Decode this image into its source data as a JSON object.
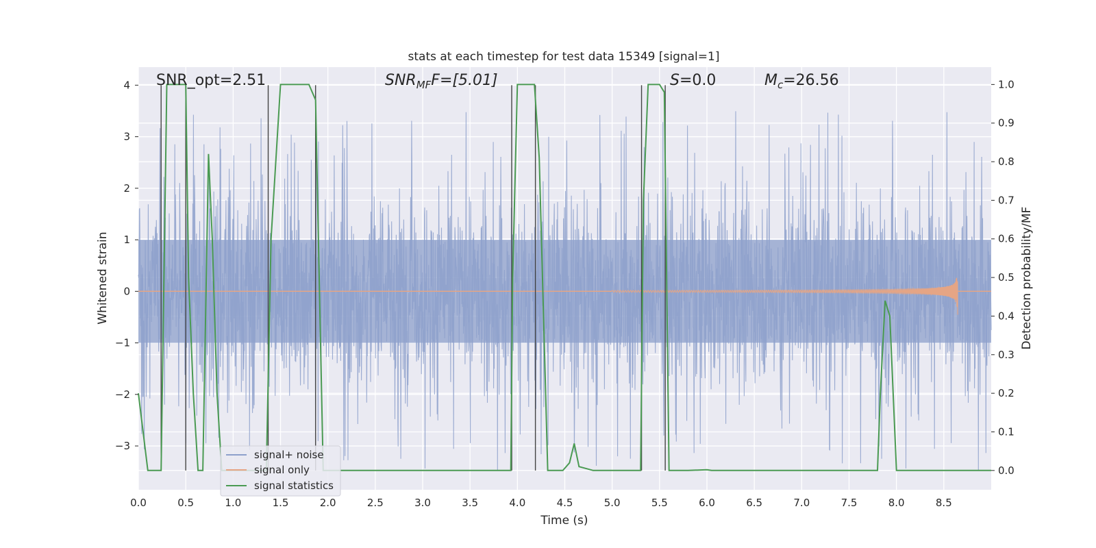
{
  "chart_data": {
    "type": "line",
    "title": "stats at each timestep for test data 15349 [signal=1]",
    "xlabel": "Time (s)",
    "ylabel_left": "Whitened strain",
    "ylabel_right": "Detection probability/MF",
    "xlim": [
      0.0,
      9.0
    ],
    "ylim_left": [
      -3.85,
      4.35
    ],
    "ylim_right": [
      -0.05,
      1.045
    ],
    "x_ticks": [
      "0.0",
      "0.5",
      "1.0",
      "1.5",
      "2.0",
      "2.5",
      "3.0",
      "3.5",
      "4.0",
      "4.5",
      "5.0",
      "5.5",
      "6.0",
      "6.5",
      "7.0",
      "7.5",
      "8.0",
      "8.5"
    ],
    "x_tick_values": [
      0.0,
      0.5,
      1.0,
      1.5,
      2.0,
      2.5,
      3.0,
      3.5,
      4.0,
      4.5,
      5.0,
      5.5,
      6.0,
      6.5,
      7.0,
      7.5,
      8.0,
      8.5
    ],
    "y_ticks_left": [
      "−3",
      "−2",
      "−1",
      "0",
      "1",
      "2",
      "3",
      "4"
    ],
    "y_tick_values_left": [
      -3,
      -2,
      -1,
      0,
      1,
      2,
      3,
      4
    ],
    "y_ticks_right": [
      "0.0",
      "0.1",
      "0.2",
      "0.3",
      "0.4",
      "0.5",
      "0.6",
      "0.7",
      "0.8",
      "0.9",
      "1.0"
    ],
    "y_tick_values_right": [
      0.0,
      0.1,
      0.2,
      0.3,
      0.4,
      0.5,
      0.6,
      0.7,
      0.8,
      0.9,
      1.0
    ],
    "grid": true,
    "legend_position": "bottom-left",
    "annotations": {
      "snr_opt": "SNR_opt=2.51",
      "snr_mf_main": "SNR",
      "snr_mf_sub": "MF",
      "snr_mf_rest": "F=[5.01]",
      "s_main": "S",
      "s_rest": "=0.0",
      "mc_main": "M",
      "mc_sub": "c",
      "mc_rest": "=26.56"
    },
    "series": [
      {
        "name": "signal+ noise",
        "color": "#8da0cb",
        "axis": "left",
        "kind": "noise",
        "amplitude": 1.9,
        "spikes_up_to": 4.0,
        "spikes_down_to": -3.5
      },
      {
        "name": "signal only",
        "color": "#e5a585",
        "axis": "left",
        "kind": "chirp",
        "merger_time": 8.65,
        "peak_amplitude": 0.6
      },
      {
        "name": "signal statistics",
        "color": "#4a9a52",
        "axis": "right",
        "x": [
          0.0,
          0.05,
          0.1,
          0.15,
          0.2,
          0.24,
          0.3,
          0.35,
          0.4,
          0.45,
          0.5,
          0.53,
          0.58,
          0.63,
          0.68,
          0.74,
          0.78,
          0.83,
          0.88,
          0.95,
          1.05,
          1.15,
          1.25,
          1.35,
          1.4,
          1.5,
          1.6,
          1.7,
          1.8,
          1.87,
          1.9,
          1.95,
          2.0,
          2.05,
          2.1,
          2.2,
          3.0,
          3.5,
          3.93,
          3.95,
          4.0,
          4.1,
          4.18,
          4.23,
          4.32,
          4.4,
          4.48,
          4.55,
          4.6,
          4.65,
          4.8,
          5.0,
          5.2,
          5.3,
          5.33,
          5.38,
          5.5,
          5.55,
          5.6,
          5.8,
          6.0,
          6.05,
          6.2,
          7.0,
          7.5,
          7.8,
          7.83,
          7.88,
          7.93,
          8.0,
          8.2,
          8.5,
          9.0
        ],
        "y": [
          0.2,
          0.1,
          0.0,
          0.0,
          0.0,
          0.0,
          1.0,
          1.0,
          1.0,
          1.0,
          1.0,
          0.5,
          0.2,
          0.0,
          0.0,
          0.82,
          0.6,
          0.2,
          0.0,
          0.0,
          0.0,
          0.0,
          0.0,
          0.0,
          0.6,
          1.0,
          1.0,
          1.0,
          1.0,
          0.96,
          0.6,
          0.0,
          0.0,
          0.0,
          0.0,
          0.0,
          0.0,
          0.0,
          0.0,
          0.5,
          1.0,
          1.0,
          1.0,
          0.81,
          0.0,
          0.0,
          0.0,
          0.02,
          0.07,
          0.01,
          0.0,
          0.0,
          0.0,
          0.0,
          0.7,
          1.0,
          1.0,
          0.98,
          0.0,
          0.0,
          0.002,
          0.0,
          0.0,
          0.0,
          0.0,
          0.0,
          0.2,
          0.44,
          0.4,
          0.0,
          0.0,
          0.0,
          0.0
        ]
      }
    ],
    "vertical_lines_x": [
      0.24,
      0.5,
      1.37,
      1.87,
      3.94,
      4.19,
      5.31,
      5.56
    ]
  }
}
